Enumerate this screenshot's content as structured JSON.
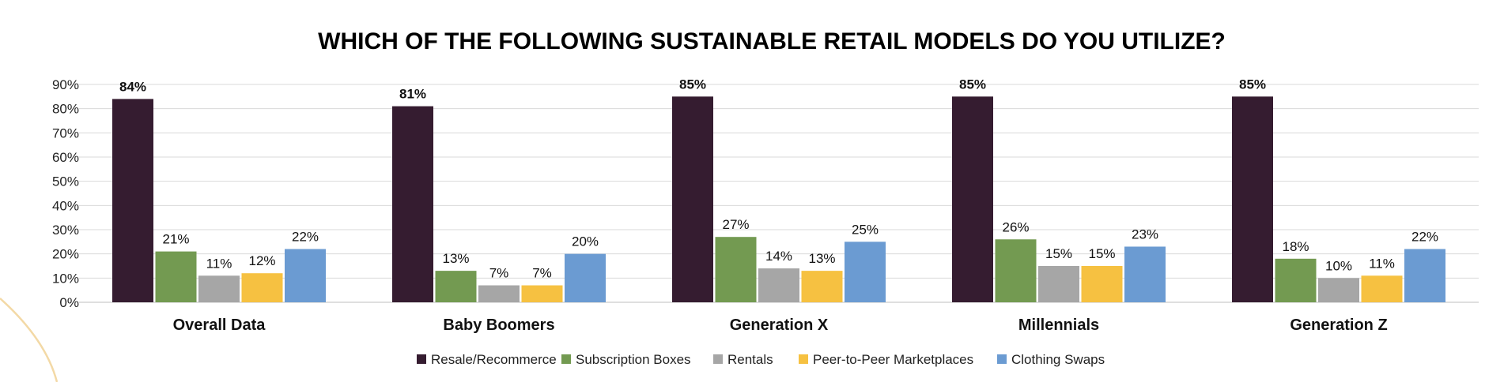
{
  "chart_data": {
    "type": "bar",
    "title": "WHICH OF THE FOLLOWING SUSTAINABLE RETAIL MODELS DO YOU UTILIZE?",
    "xlabel": "",
    "ylabel": "",
    "ylim": [
      0,
      90
    ],
    "y_ticks": [
      "0%",
      "10%",
      "20%",
      "30%",
      "40%",
      "50%",
      "60%",
      "70%",
      "80%",
      "90%"
    ],
    "grid": true,
    "legend_position": "bottom",
    "categories": [
      "Overall Data",
      "Baby Boomers",
      "Generation X",
      "Millennials",
      "Generation Z"
    ],
    "series": [
      {
        "name": "Resale/Recommerce",
        "color": "#351c30",
        "values": [
          84,
          81,
          85,
          85,
          85
        ],
        "labels": [
          "84%",
          "81%",
          "85%",
          "85%",
          "85%"
        ]
      },
      {
        "name": "Subscription Boxes",
        "color": "#739a51",
        "values": [
          21,
          13,
          27,
          26,
          18
        ],
        "labels": [
          "21%",
          "13%",
          "27%",
          "26%",
          "18%"
        ]
      },
      {
        "name": "Rentals",
        "color": "#a6a6a6",
        "values": [
          11,
          7,
          14,
          15,
          10
        ],
        "labels": [
          "11%",
          "7%",
          "14%",
          "15%",
          "10%"
        ]
      },
      {
        "name": "Peer-to-Peer Marketplaces",
        "color": "#f6c141",
        "values": [
          12,
          7,
          13,
          15,
          11
        ],
        "labels": [
          "12%",
          "7%",
          "13%",
          "15%",
          "11%"
        ]
      },
      {
        "name": "Clothing Swaps",
        "color": "#6b9bd2",
        "values": [
          22,
          20,
          25,
          23,
          22
        ],
        "labels": [
          "22%",
          "20%",
          "25%",
          "23%",
          "22%"
        ]
      }
    ]
  },
  "decoration": {
    "arc_color": "#f3d9a6"
  }
}
